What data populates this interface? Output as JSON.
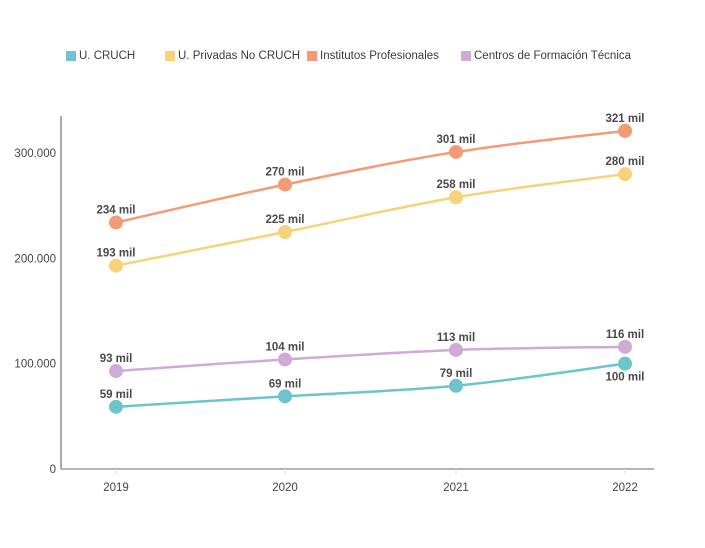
{
  "chart_data": {
    "type": "line",
    "title": "",
    "xlabel": "",
    "ylabel": "",
    "x": [
      "2019",
      "2020",
      "2021",
      "2022"
    ],
    "ylim": [
      0,
      335000
    ],
    "yticks": [
      0,
      100000,
      200000,
      300000
    ],
    "ytick_labels": [
      "0",
      "100.000",
      "200.000",
      "300.000"
    ],
    "grid": false,
    "legend_position": "top-left",
    "series": [
      {
        "name": "U. CRUCH",
        "color": "#6cc5cb",
        "values": [
          59000,
          69000,
          79000,
          100000
        ],
        "labels": [
          "59 mil",
          "69 mil",
          "79 mil",
          "100 mil"
        ],
        "label_pos": [
          "above",
          "above",
          "above",
          "below"
        ]
      },
      {
        "name": "U. Privadas No CRUCH",
        "color": "#f7d27a",
        "values": [
          193000,
          225000,
          258000,
          280000
        ],
        "labels": [
          "193 mil",
          "225 mil",
          "258 mil",
          "280 mil"
        ],
        "label_pos": [
          "above",
          "above",
          "above",
          "above"
        ]
      },
      {
        "name": "Institutos Profesionales",
        "color": "#f29b76",
        "values": [
          234000,
          270000,
          301000,
          321000
        ],
        "labels": [
          "234 mil",
          "270 mil",
          "301 mil",
          "321 mil"
        ],
        "label_pos": [
          "above",
          "above",
          "above",
          "above"
        ]
      },
      {
        "name": "Centros de Formación Técnica",
        "color": "#cfaad6",
        "values": [
          93000,
          104000,
          113000,
          116000
        ],
        "labels": [
          "93 mil",
          "104 mil",
          "113 mil",
          "116 mil"
        ],
        "label_pos": [
          "above",
          "above",
          "above",
          "above"
        ]
      }
    ]
  }
}
